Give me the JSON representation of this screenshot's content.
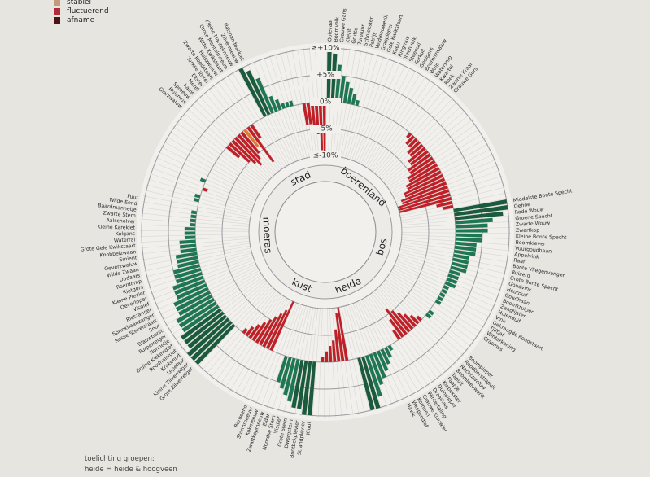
{
  "legend": [
    {
      "label": "stabiel",
      "color": "#c49a7a"
    },
    {
      "label": "fluctuerend",
      "color": "#b22a3a"
    },
    {
      "label": "afname",
      "color": "#4a1418"
    }
  ],
  "notes": {
    "title": "toelichting groepen:",
    "line1": "heide = heide & hoogveen"
  },
  "chart_data": {
    "type": "radial-bar",
    "title": "",
    "scale_labels": [
      "≥+10%",
      "+5%",
      "0%",
      "-5%",
      "≤-10%"
    ],
    "scale_values": [
      10,
      5,
      0,
      -5,
      -10
    ],
    "ylim": [
      -10,
      10
    ],
    "colors": {
      "increase": "#1f7652",
      "decrease": "#bf2028",
      "stable": "#e07a3a"
    },
    "groups": [
      {
        "name": "stad",
        "values": [
          -3,
          -5,
          -6,
          -7,
          -6,
          -5,
          -4,
          -8,
          -3,
          0,
          0,
          0,
          10,
          9,
          7,
          3,
          2,
          1,
          1,
          1,
          0,
          0,
          -4,
          -4,
          -5,
          -6,
          -9,
          -10
        ],
        "species": [
          "Gierzwaluw",
          "Huismus",
          "Spreeuw",
          "Kauw",
          "Merel",
          "Ekster",
          "Turkse Tortel",
          "Zwarte Roodstaart",
          "Huiszwaluw",
          "Witte Kwikstaart",
          "Grote Mantelmeeuw",
          "Kleine Mantelmeeuw",
          "Zilvermeeuw",
          "Halsbandparkiet"
        ]
      },
      {
        "name": "boerenland",
        "values": [
          10,
          9,
          7,
          5,
          4,
          3,
          2,
          1,
          0,
          0,
          0,
          0,
          0,
          0,
          0,
          0,
          0,
          0,
          0,
          0,
          0,
          0,
          -1,
          -2,
          -2,
          -3,
          -3,
          -4,
          -4,
          -5,
          -5,
          -6,
          -6,
          -7,
          -7,
          -8,
          -8,
          -9,
          -9,
          -10,
          -10,
          -10,
          -3,
          -2
        ],
        "species": [
          "Ooievaar",
          "Boomvalk",
          "Grauwe Gans",
          "Kievit",
          "Grutto",
          "Tureluur",
          "Scholekster",
          "Patrijs",
          "Veldleeuwerik",
          "Graspieper",
          "Gele Kwikstaart",
          "Kneu",
          "Ringmus",
          "Torenvalk",
          "Steenuil",
          "Kerkuil",
          "Geelgors",
          "Boerenzwaluw",
          "Wulp",
          "Watersnip",
          "Kwartel",
          "Roek",
          "Zwarte Kraai",
          "Grauwe Gors"
        ]
      },
      {
        "name": "bos",
        "values": [
          10,
          10,
          9,
          7,
          6,
          6,
          5,
          5,
          4,
          4,
          4,
          3,
          3,
          3,
          3,
          2,
          2,
          2,
          2,
          1,
          1,
          1,
          1,
          1,
          0,
          0,
          1,
          1
        ],
        "species": [
          "Middelste Bonte Specht",
          "Oehoe",
          "Rode Wouw",
          "Groene Specht",
          "Zwarte Wouw",
          "Zwartkop",
          "Kleine Bonte Specht",
          "Boomklever",
          "Vuurgoudhaan",
          "Appelvink",
          "Raaf",
          "Bonte Vliegenvanger",
          "Buizerd",
          "Grote Bonte Specht",
          "Goudvink",
          "Houtduif",
          "Goudhaan",
          "Boomkruiper",
          "Zanglijster",
          "Holenduif",
          "Vink",
          "Gekraagde Roodstaart",
          "Tjiftjaf",
          "Winterkoning",
          "Grasmus"
        ]
      },
      {
        "name": "heide",
        "values": [
          0,
          -1,
          -2,
          -3,
          -4,
          -5,
          -6,
          -4,
          -2,
          0,
          0,
          1,
          2,
          3,
          4,
          5,
          6,
          8,
          10,
          10,
          0,
          0,
          -10,
          -9,
          -6,
          -4,
          -3,
          -2,
          -1,
          0
        ],
        "species": [
          "Boompieper",
          "Roodborsttapuit",
          "Nachtzwaluw",
          "Boomleeuwerik",
          "Tapuit",
          "Paapje",
          "Klapekster",
          "Duinpieper",
          "Draaihals",
          "Wintertaling",
          "Grauwe Klauwier",
          "Korhoen",
          "Wespendief",
          "Havik"
        ]
      },
      {
        "name": "kust",
        "values": [
          10,
          10,
          9,
          9,
          8,
          7,
          6,
          5,
          0,
          0,
          0,
          -10,
          -8,
          -7,
          -6,
          -5,
          -4,
          -3,
          -2,
          -1,
          0,
          0
        ],
        "species": [
          "Kluut",
          "Strandplevier",
          "Bontbekplevier",
          "Dwergstern",
          "Grote Stern",
          "Visdief",
          "Noordse Stern",
          "Eider",
          "Zwartkopmeeuw",
          "Kokmeeuw",
          "Stormmeeuw",
          "Bergeend"
        ]
      },
      {
        "name": "moeras",
        "values": [
          10,
          10,
          10,
          9,
          9,
          9,
          8,
          8,
          8,
          7,
          7,
          7,
          6,
          6,
          6,
          5,
          5,
          5,
          4,
          4,
          4,
          3,
          3,
          3,
          2,
          2,
          2,
          1,
          1,
          1,
          1,
          0,
          0,
          1,
          1,
          0,
          -1,
          0,
          1,
          0,
          0,
          0,
          0,
          0,
          0,
          0,
          0,
          0
        ],
        "species": [
          "Grote Zilverreiger",
          "Kleine Zilverreiger",
          "Lepelaar",
          "Krakeend",
          "Roodhalsfuut",
          "Bruine Kiekendief",
          "Nonnetje",
          "Purperreiger",
          "Blauwborst",
          "Snor",
          "Rosse Stekelstaart",
          "Sprinkhaanzanger",
          "Rietzanger",
          "Visdief",
          "Oeverloper",
          "Kleine Plevier",
          "Rietgors",
          "Roerdomp",
          "Dodaars",
          "Wilde Zwaan",
          "Oeverzwaluw",
          "Smient",
          "Knobbelzwaan",
          "Grote Gele Kwikstaart",
          "Waterral",
          "Kolgans",
          "Kleine Karekiet",
          "Aalscholver",
          "Zwarte Stern",
          "Baardmannetje",
          "Wilde Eend",
          "Fuut"
        ]
      }
    ]
  }
}
